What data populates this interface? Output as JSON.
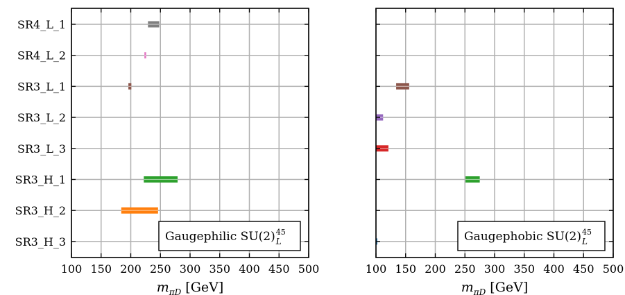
{
  "chart_data": [
    {
      "type": "bar",
      "orientation": "horizontal-interval",
      "annotation": "Gaugephilic SU(2)",
      "annotation_sub": "L",
      "annotation_sup": "45",
      "xlabel": "m",
      "xlabel_sub": "πD",
      "xlabel_unit": "[GeV]",
      "xlim": [
        100,
        500
      ],
      "xticks": [
        100,
        150,
        200,
        250,
        300,
        350,
        400,
        450,
        500
      ],
      "grid": true,
      "categories": [
        "SR4_L_1",
        "SR4_L_2",
        "SR3_L_1",
        "SR3_L_2",
        "SR3_L_3",
        "SR3_H_1",
        "SR3_H_2",
        "SR3_H_3"
      ],
      "intervals": [
        {
          "category": "SR4_L_1",
          "low": 229,
          "high": 248,
          "color": "#7f7f7f"
        },
        {
          "category": "SR4_L_2",
          "low": 223,
          "high": 226,
          "color": "#e377c2"
        },
        {
          "category": "SR3_L_1",
          "low": 196,
          "high": 201,
          "color": "#8c564b"
        },
        {
          "category": "SR3_H_1",
          "low": 222,
          "high": 279,
          "color": "#2ca02c"
        },
        {
          "category": "SR3_H_2",
          "low": 184,
          "high": 246,
          "color": "#ff7f0e"
        }
      ]
    },
    {
      "type": "bar",
      "orientation": "horizontal-interval",
      "annotation": "Gaugephobic SU(2)",
      "annotation_sub": "L",
      "annotation_sup": "45",
      "xlabel": "m",
      "xlabel_sub": "πD",
      "xlabel_unit": "[GeV]",
      "xlim": [
        100,
        500
      ],
      "xticks": [
        100,
        150,
        200,
        250,
        300,
        350,
        400,
        450,
        500
      ],
      "grid": true,
      "categories": [
        "SR4_L_1",
        "SR4_L_2",
        "SR3_L_1",
        "SR3_L_2",
        "SR3_L_3",
        "SR3_H_1",
        "SR3_H_2",
        "SR3_H_3"
      ],
      "intervals": [
        {
          "category": "SR3_L_1",
          "low": 134,
          "high": 156,
          "color": "#8c564b"
        },
        {
          "category": "SR3_L_2",
          "low": 100,
          "high": 112,
          "color": "#9467bd"
        },
        {
          "category": "SR3_L_3",
          "low": 100,
          "high": 121,
          "color": "#d62728"
        },
        {
          "category": "SR3_H_1",
          "low": 251,
          "high": 275,
          "color": "#2ca02c"
        },
        {
          "category": "SR3_H_3",
          "low": 100,
          "high": 102,
          "color": "#1f77b4"
        }
      ]
    }
  ]
}
